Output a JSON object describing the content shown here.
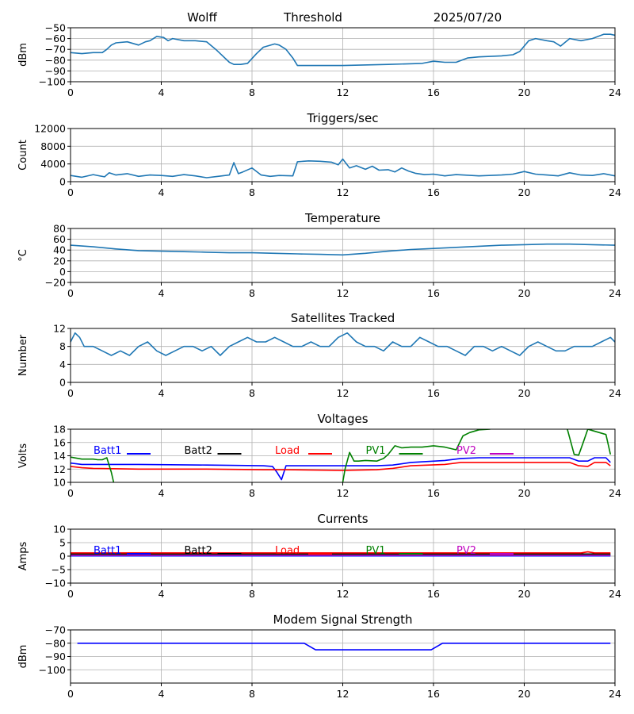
{
  "header": {
    "station": "Wolff",
    "threshold_label": "Threshold",
    "date": "2025/07/20"
  },
  "chart_data": [
    {
      "type": "line",
      "title": "",
      "xlabel": "",
      "ylabel": "dBm",
      "xlim": [
        0,
        24
      ],
      "ylim": [
        -100,
        -50
      ],
      "x_ticks": [
        0,
        4,
        8,
        12,
        16,
        20,
        24
      ],
      "y_ticks": [
        -100,
        -90,
        -80,
        -70,
        -60,
        -50
      ],
      "grid": true,
      "series": [
        {
          "color": "#1f77b4",
          "x": [
            0,
            0.5,
            1,
            1.4,
            1.6,
            1.8,
            2.0,
            2.5,
            3,
            3.3,
            3.5,
            3.8,
            4.1,
            4.3,
            4.5,
            5,
            5.5,
            6,
            6.4,
            6.6,
            7,
            7.2,
            7.5,
            7.8,
            8.2,
            8.5,
            9,
            9.2,
            9.5,
            9.8,
            10,
            12,
            14,
            15.5,
            16,
            16.5,
            17,
            17.5,
            18,
            19,
            19.5,
            19.8,
            20.2,
            20.5,
            21,
            21.3,
            21.6,
            22,
            22.5,
            23,
            23.5,
            23.8,
            24
          ],
          "y": [
            -73,
            -74,
            -73,
            -73,
            -70,
            -66,
            -64,
            -63,
            -66,
            -63,
            -62,
            -58,
            -59,
            -62,
            -60,
            -62,
            -62,
            -63,
            -70,
            -74,
            -82,
            -84,
            -84,
            -83,
            -74,
            -68,
            -65,
            -66,
            -70,
            -78,
            -85,
            -85,
            -84,
            -83,
            -81,
            -82,
            -82,
            -78,
            -77,
            -76,
            -75,
            -72,
            -62,
            -60,
            -62,
            -63,
            -67,
            -60,
            -62,
            -60,
            -56,
            -56,
            -57
          ]
        }
      ]
    },
    {
      "type": "line",
      "title": "Triggers/sec",
      "xlabel": "",
      "ylabel": "Count",
      "xlim": [
        0,
        24
      ],
      "ylim": [
        0,
        12000
      ],
      "x_ticks": [
        0,
        4,
        8,
        12,
        16,
        20,
        24
      ],
      "y_ticks": [
        0,
        4000,
        8000,
        12000
      ],
      "grid": true,
      "series": [
        {
          "color": "#1f77b4",
          "x": [
            0,
            0.5,
            1,
            1.5,
            1.7,
            2,
            2.5,
            3,
            3.5,
            4,
            4.5,
            5,
            5.5,
            6,
            6.5,
            7,
            7.2,
            7.4,
            7.6,
            8,
            8.4,
            8.8,
            9.2,
            9.8,
            10,
            10.5,
            11,
            11.5,
            11.8,
            12,
            12.3,
            12.6,
            13,
            13.3,
            13.6,
            14,
            14.3,
            14.6,
            14.9,
            15.2,
            15.6,
            16,
            16.5,
            17,
            18,
            19,
            19.5,
            20,
            20.5,
            21,
            21.5,
            22,
            22.5,
            23,
            23.5,
            24
          ],
          "y": [
            1400,
            1000,
            1600,
            1100,
            2000,
            1500,
            1800,
            1200,
            1500,
            1400,
            1200,
            1600,
            1300,
            900,
            1200,
            1500,
            4300,
            1800,
            2200,
            3100,
            1500,
            1200,
            1400,
            1300,
            4500,
            4700,
            4600,
            4400,
            3800,
            5100,
            3100,
            3600,
            2800,
            3500,
            2600,
            2700,
            2200,
            3100,
            2400,
            1900,
            1600,
            1700,
            1300,
            1600,
            1300,
            1500,
            1700,
            2300,
            1700,
            1500,
            1300,
            2000,
            1500,
            1400,
            1800,
            1300
          ]
        }
      ]
    },
    {
      "type": "line",
      "title": "Temperature",
      "xlabel": "",
      "ylabel": "°C",
      "xlim": [
        0,
        24
      ],
      "ylim": [
        -20,
        80
      ],
      "x_ticks": [
        0,
        4,
        8,
        12,
        16,
        20,
        24
      ],
      "y_ticks": [
        -20,
        0,
        20,
        40,
        60,
        80
      ],
      "grid": true,
      "series": [
        {
          "color": "#1f77b4",
          "x": [
            0,
            1,
            2,
            3,
            4,
            5,
            6,
            7,
            8,
            9,
            10,
            11,
            12,
            13,
            14,
            15,
            16,
            17,
            18,
            19,
            20,
            21,
            22,
            23,
            24
          ],
          "y": [
            49,
            46,
            42,
            39,
            38,
            37,
            36,
            35,
            35,
            34,
            33,
            32,
            31,
            34,
            38,
            41,
            43,
            45,
            47,
            49,
            50,
            51,
            51,
            50,
            49
          ]
        }
      ]
    },
    {
      "type": "line",
      "title": "Satellites Tracked",
      "xlabel": "",
      "ylabel": "Number",
      "xlim": [
        0,
        24
      ],
      "ylim": [
        0,
        12
      ],
      "x_ticks": [
        0,
        4,
        8,
        12,
        16,
        20,
        24
      ],
      "y_ticks": [
        0,
        4,
        8,
        12
      ],
      "grid": true,
      "series": [
        {
          "color": "#1f77b4",
          "x": [
            0,
            0.2,
            0.4,
            0.6,
            1.0,
            1.4,
            1.8,
            2.2,
            2.6,
            3.0,
            3.4,
            3.8,
            4.2,
            4.6,
            5.0,
            5.4,
            5.8,
            6.2,
            6.6,
            7.0,
            7.4,
            7.8,
            8.2,
            8.6,
            9.0,
            9.4,
            9.8,
            10.2,
            10.6,
            11.0,
            11.4,
            11.8,
            12.2,
            12.6,
            13.0,
            13.4,
            13.8,
            14.2,
            14.6,
            15.0,
            15.4,
            15.8,
            16.2,
            16.6,
            17.0,
            17.4,
            17.8,
            18.2,
            18.6,
            19.0,
            19.4,
            19.8,
            20.2,
            20.6,
            21.0,
            21.4,
            21.8,
            22.2,
            22.6,
            23.0,
            23.4,
            23.8,
            24
          ],
          "y": [
            9,
            11,
            10,
            8,
            8,
            7,
            6,
            7,
            6,
            8,
            9,
            7,
            6,
            7,
            8,
            8,
            7,
            8,
            6,
            8,
            9,
            10,
            9,
            9,
            10,
            9,
            8,
            8,
            9,
            8,
            8,
            10,
            11,
            9,
            8,
            8,
            7,
            9,
            8,
            8,
            10,
            9,
            8,
            8,
            7,
            6,
            8,
            8,
            7,
            8,
            7,
            6,
            8,
            9,
            8,
            7,
            7,
            8,
            8,
            8,
            9,
            10,
            9
          ]
        }
      ]
    },
    {
      "type": "line",
      "title": "Voltages",
      "xlabel": "",
      "ylabel": "Volts",
      "xlim": [
        0,
        24
      ],
      "ylim": [
        10,
        18
      ],
      "x_ticks": [
        0,
        4,
        8,
        12,
        16,
        20,
        24
      ],
      "y_ticks": [
        10,
        12,
        14,
        16,
        18
      ],
      "grid": true,
      "legend": "top, single row",
      "series": [
        {
          "name": "Batt1",
          "color": "#0000ff",
          "x": [
            0,
            0.5,
            1,
            3,
            6,
            8.5,
            8.9,
            9.1,
            9.3,
            9.5,
            12,
            13.5,
            14.2,
            15,
            16.5,
            17.2,
            18,
            20,
            22,
            22.4,
            22.8,
            23.1,
            23.4,
            23.6,
            23.8
          ],
          "y": [
            12.9,
            12.7,
            12.7,
            12.7,
            12.6,
            12.5,
            12.4,
            11.5,
            10.4,
            12.5,
            12.5,
            12.5,
            12.6,
            13.0,
            13.3,
            13.6,
            13.7,
            13.7,
            13.7,
            13.2,
            13.2,
            13.7,
            13.7,
            13.7,
            13.0
          ]
        },
        {
          "name": "Batt2",
          "color": "#000000",
          "x": [],
          "y": []
        },
        {
          "name": "Load",
          "color": "#ff0000",
          "x": [
            0,
            0.5,
            1,
            3,
            6,
            8.5,
            9.5,
            12,
            13.5,
            14.2,
            15,
            16.5,
            17.2,
            18,
            20,
            22,
            22.4,
            22.8,
            23.1,
            23.4,
            23.6,
            23.8
          ],
          "y": [
            12.4,
            12.2,
            12.1,
            12.0,
            12.0,
            11.9,
            11.9,
            11.8,
            11.9,
            12.1,
            12.5,
            12.7,
            13.0,
            13.0,
            13.0,
            13.0,
            12.5,
            12.4,
            13.0,
            13.0,
            13.0,
            12.5
          ]
        },
        {
          "name": "PV1",
          "color": "#008000",
          "x": [
            0,
            0.5,
            1.0,
            1.2,
            1.4,
            1.6,
            1.8,
            1.9,
            null,
            12.0,
            12.1,
            12.3,
            12.5,
            12.7,
            13.0,
            13.5,
            13.8,
            14.0,
            14.3,
            14.6,
            15.0,
            15.5,
            16.0,
            16.5,
            17.0,
            17.3,
            17.6,
            18.0,
            18.5,
            null,
            21.9,
            22.2,
            22.4,
            22.6,
            22.8,
            23.0,
            23.3,
            23.6,
            23.8
          ],
          "y": [
            13.8,
            13.5,
            13.5,
            13.4,
            13.4,
            13.7,
            11.5,
            10.0,
            null,
            10.0,
            12.0,
            14.5,
            13.2,
            13.2,
            13.3,
            13.2,
            13.6,
            14.2,
            15.5,
            15.2,
            15.3,
            15.3,
            15.5,
            15.3,
            14.9,
            17.0,
            17.5,
            17.9,
            18.0,
            null,
            18.0,
            14.2,
            14.1,
            16.0,
            18.0,
            17.8,
            17.5,
            17.2,
            14.2
          ]
        },
        {
          "name": "PV2",
          "color": "#bf00bf",
          "x": [],
          "y": []
        }
      ]
    },
    {
      "type": "line",
      "title": "Currents",
      "xlabel": "",
      "ylabel": "Amps",
      "xlim": [
        0,
        24
      ],
      "ylim": [
        -10,
        10
      ],
      "x_ticks": [
        0,
        4,
        8,
        12,
        16,
        20,
        24
      ],
      "y_ticks": [
        -10,
        -5,
        0,
        5,
        10
      ],
      "grid": true,
      "legend": "top, single row",
      "series": [
        {
          "name": "Batt1",
          "color": "#0000ff",
          "x": [
            0,
            23.8
          ],
          "y": [
            0.1,
            0.1
          ]
        },
        {
          "name": "Batt2",
          "color": "#000000",
          "x": [
            0,
            23.8
          ],
          "y": [
            0.8,
            0.8
          ]
        },
        {
          "name": "Load",
          "color": "#ff0000",
          "x": [
            0,
            22.5,
            22.8,
            23.1,
            23.8
          ],
          "y": [
            1.2,
            1.2,
            1.6,
            1.2,
            1.2
          ]
        },
        {
          "name": "PV1",
          "color": "#008000",
          "x": [
            0,
            23.8
          ],
          "y": [
            0.4,
            0.4
          ]
        },
        {
          "name": "PV2",
          "color": "#bf00bf",
          "x": [
            0,
            23.8
          ],
          "y": [
            0.3,
            0.3
          ]
        }
      ]
    },
    {
      "type": "line",
      "title": "Modem Signal Strength",
      "xlabel": "",
      "ylabel": "dBm",
      "xlim": [
        0,
        24
      ],
      "ylim": [
        -110,
        -70
      ],
      "x_ticks": [
        0,
        4,
        8,
        12,
        16,
        20,
        24
      ],
      "y_ticks": [
        -100,
        -90,
        -80,
        -70
      ],
      "grid": true,
      "series": [
        {
          "color": "#0000ff",
          "x": [
            0.3,
            10.3,
            10.8,
            15.9,
            16.4,
            23.8
          ],
          "y": [
            -80,
            -80,
            -85,
            -85,
            -80,
            -80
          ]
        }
      ]
    }
  ]
}
